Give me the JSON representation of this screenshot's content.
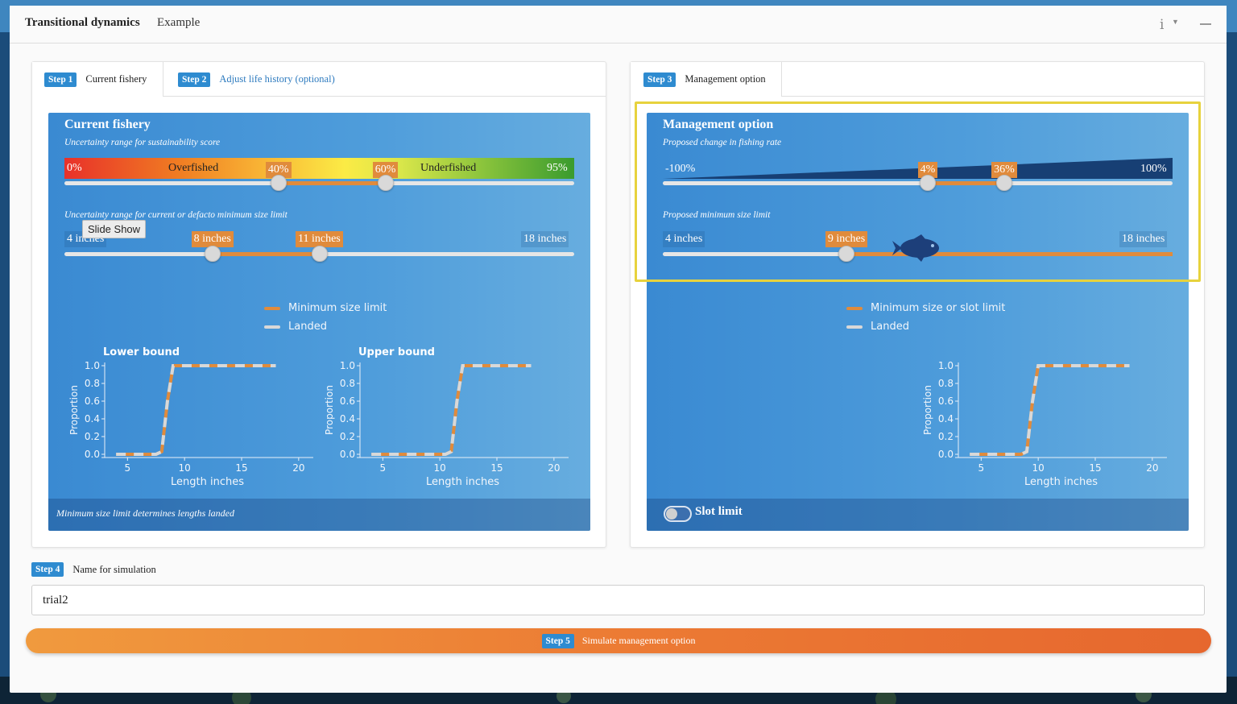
{
  "app": {
    "title": "Transitional dynamics",
    "subtitle": "Example",
    "icons": [
      "info-icon",
      "caret-down-icon",
      "minimize-icon"
    ]
  },
  "left_card": {
    "tabs": [
      {
        "badge": "Step 1",
        "label": "Current fishery",
        "active": true
      },
      {
        "badge": "Step 2",
        "label": "Adjust life history (optional)",
        "active": false
      }
    ],
    "panel": {
      "title": "Current fishery",
      "score_subtitle": "Uncertainty range for sustainability score",
      "score": {
        "min_label": "0%",
        "max_label": "95%",
        "zone_low": "Overfished",
        "zone_high": "Underfished",
        "low_value": "40%",
        "high_value": "60%",
        "low_fraction": 0.42,
        "high_fraction": 0.63
      },
      "size_subtitle": "Uncertainty range for current or defacto minimum size limit",
      "size": {
        "min_label": "4 inches",
        "max_label": "18 inches",
        "low_value": "8 inches",
        "high_value": "11 inches",
        "low_fraction": 0.29,
        "high_fraction": 0.5
      },
      "tooltip": "Slide Show",
      "legend": [
        {
          "label": "Minimum size limit",
          "color": "#e08b3c"
        },
        {
          "label": "Landed",
          "color": "#d8d8d8"
        }
      ],
      "footer": "Minimum size limit determines lengths landed"
    }
  },
  "right_card": {
    "tabs": [
      {
        "badge": "Step 3",
        "label": "Management option",
        "active": true
      }
    ],
    "panel": {
      "title": "Management option",
      "rate_subtitle": "Proposed change in fishing rate",
      "rate": {
        "min_label": "-100%",
        "max_label": "100%",
        "low_value": "4%",
        "high_value": "36%",
        "low_fraction": 0.52,
        "high_fraction": 0.67
      },
      "size_subtitle": "Proposed minimum size limit",
      "size": {
        "min_label": "4 inches",
        "max_label": "18 inches",
        "value": "9 inches",
        "fraction": 0.36
      },
      "legend": [
        {
          "label": "Minimum size or slot limit",
          "color": "#e08b3c"
        },
        {
          "label": "Landed",
          "color": "#d8d8d8"
        }
      ],
      "slot_limit_label": "Slot limit",
      "slot_limit_on": false
    }
  },
  "step4": {
    "badge": "Step 4",
    "label": "Name for simulation",
    "value": "trial2"
  },
  "step5": {
    "badge": "Step 5",
    "label": "Simulate management option"
  },
  "chart_data": [
    {
      "type": "line",
      "title": "Lower bound",
      "xlabel": "Length inches",
      "ylabel": "Proportion",
      "xlim": [
        3,
        21
      ],
      "ylim": [
        0,
        1
      ],
      "xticks": [
        "5",
        "10",
        "15",
        "20"
      ],
      "yticks": [
        "0.0",
        "0.2",
        "0.4",
        "0.6",
        "0.8",
        "1.0"
      ],
      "series": [
        {
          "name": "Minimum size limit",
          "x": [
            4,
            7.5,
            8.0,
            8.5,
            9.0,
            18
          ],
          "y": [
            0,
            0,
            0.03,
            0.6,
            1.0,
            1.0
          ]
        },
        {
          "name": "Landed",
          "x": [
            4,
            7.5,
            8.0,
            8.5,
            9.0,
            18
          ],
          "y": [
            0,
            0,
            0.03,
            0.6,
            1.0,
            1.0
          ]
        }
      ]
    },
    {
      "type": "line",
      "title": "Upper bound",
      "xlabel": "Length inches",
      "ylabel": "Proportion",
      "xlim": [
        3,
        21
      ],
      "ylim": [
        0,
        1
      ],
      "xticks": [
        "5",
        "10",
        "15",
        "20"
      ],
      "yticks": [
        "0.0",
        "0.2",
        "0.4",
        "0.6",
        "0.8",
        "1.0"
      ],
      "series": [
        {
          "name": "Minimum size limit",
          "x": [
            4,
            10.5,
            11.0,
            11.5,
            12.0,
            18
          ],
          "y": [
            0,
            0,
            0.03,
            0.6,
            1.0,
            1.0
          ]
        },
        {
          "name": "Landed",
          "x": [
            4,
            10.5,
            11.0,
            11.5,
            12.0,
            18
          ],
          "y": [
            0,
            0,
            0.03,
            0.6,
            1.0,
            1.0
          ]
        }
      ]
    },
    {
      "type": "line",
      "title": "",
      "xlabel": "Length inches",
      "ylabel": "Proportion",
      "xlim": [
        3,
        21
      ],
      "ylim": [
        0,
        1
      ],
      "xticks": [
        "5",
        "10",
        "15",
        "20"
      ],
      "yticks": [
        "0.0",
        "0.2",
        "0.4",
        "0.6",
        "0.8",
        "1.0"
      ],
      "series": [
        {
          "name": "Minimum size or slot limit",
          "x": [
            4,
            8.5,
            9.0,
            9.5,
            10.0,
            18
          ],
          "y": [
            0,
            0,
            0.03,
            0.6,
            1.0,
            1.0
          ]
        },
        {
          "name": "Landed",
          "x": [
            4,
            8.5,
            9.0,
            9.5,
            10.0,
            18
          ],
          "y": [
            0,
            0,
            0.03,
            0.6,
            1.0,
            1.0
          ]
        }
      ]
    }
  ]
}
